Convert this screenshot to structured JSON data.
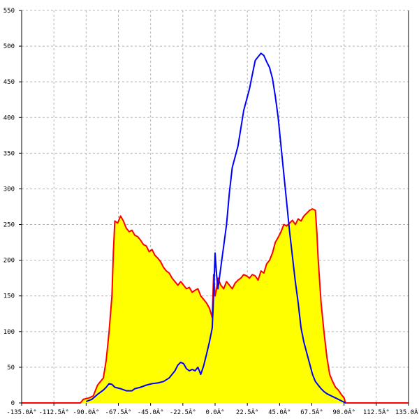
{
  "chart_data": {
    "type": "area",
    "title": "",
    "xlabel": "",
    "ylabel": "",
    "xlim": [
      -135,
      135
    ],
    "ylim": [
      0,
      550
    ],
    "grid": true,
    "legend": "none",
    "x_ticks": [
      -135,
      -112.5,
      -90,
      -67.5,
      -45,
      -22.5,
      0,
      22.5,
      45,
      67.5,
      90,
      112.5,
      135
    ],
    "x_tick_labels": [
      "-135.0Â°",
      "-112.5Â°",
      "-90.0Â°",
      "-67.5Â°",
      "-45.0Â°",
      "-22.5Â°",
      "0.0Â°",
      "22.5Â°",
      "45.0Â°",
      "67.5Â°",
      "90.0Â°",
      "112.5Â°",
      "135.0Â°"
    ],
    "y_ticks": [
      0,
      50,
      100,
      150,
      200,
      250,
      300,
      350,
      400,
      450,
      500,
      550
    ],
    "y_tick_labels": [
      "0",
      "50",
      "100",
      "150",
      "200",
      "250",
      "300",
      "350",
      "400",
      "450",
      "500",
      "550"
    ],
    "series": [
      {
        "color": "#ff0000",
        "fill": "#ffff00",
        "points": [
          [
            -135,
            0
          ],
          [
            -94,
            0
          ],
          [
            -92,
            5
          ],
          [
            -88,
            7
          ],
          [
            -85,
            10
          ],
          [
            -82,
            25
          ],
          [
            -80,
            30
          ],
          [
            -78,
            35
          ],
          [
            -76,
            60
          ],
          [
            -74,
            100
          ],
          [
            -72,
            150
          ],
          [
            -71,
            210
          ],
          [
            -70,
            255
          ],
          [
            -68,
            252
          ],
          [
            -66,
            262
          ],
          [
            -64,
            255
          ],
          [
            -62,
            245
          ],
          [
            -60,
            240
          ],
          [
            -58,
            242
          ],
          [
            -56,
            235
          ],
          [
            -54,
            233
          ],
          [
            -52,
            228
          ],
          [
            -50,
            222
          ],
          [
            -48,
            220
          ],
          [
            -46,
            212
          ],
          [
            -44,
            215
          ],
          [
            -42,
            207
          ],
          [
            -40,
            203
          ],
          [
            -38,
            198
          ],
          [
            -36,
            190
          ],
          [
            -34,
            185
          ],
          [
            -32,
            182
          ],
          [
            -30,
            175
          ],
          [
            -28,
            170
          ],
          [
            -26,
            165
          ],
          [
            -24,
            170
          ],
          [
            -22,
            165
          ],
          [
            -20,
            160
          ],
          [
            -18,
            162
          ],
          [
            -16,
            155
          ],
          [
            -14,
            158
          ],
          [
            -12,
            160
          ],
          [
            -10,
            150
          ],
          [
            -8,
            145
          ],
          [
            -6,
            140
          ],
          [
            -4,
            133
          ],
          [
            -2,
            120
          ],
          [
            -1,
            180
          ],
          [
            0,
            150
          ],
          [
            1,
            160
          ],
          [
            2,
            175
          ],
          [
            4,
            165
          ],
          [
            6,
            160
          ],
          [
            8,
            170
          ],
          [
            10,
            165
          ],
          [
            12,
            160
          ],
          [
            14,
            168
          ],
          [
            16,
            172
          ],
          [
            18,
            175
          ],
          [
            20,
            180
          ],
          [
            22,
            178
          ],
          [
            24,
            175
          ],
          [
            26,
            180
          ],
          [
            28,
            178
          ],
          [
            30,
            172
          ],
          [
            32,
            185
          ],
          [
            34,
            182
          ],
          [
            36,
            195
          ],
          [
            38,
            200
          ],
          [
            40,
            210
          ],
          [
            42,
            225
          ],
          [
            44,
            232
          ],
          [
            46,
            240
          ],
          [
            48,
            250
          ],
          [
            50,
            248
          ],
          [
            52,
            252
          ],
          [
            54,
            256
          ],
          [
            56,
            250
          ],
          [
            58,
            258
          ],
          [
            60,
            255
          ],
          [
            62,
            262
          ],
          [
            64,
            266
          ],
          [
            66,
            270
          ],
          [
            68,
            272
          ],
          [
            70,
            270
          ],
          [
            71,
            240
          ],
          [
            72,
            200
          ],
          [
            74,
            140
          ],
          [
            76,
            100
          ],
          [
            78,
            65
          ],
          [
            80,
            40
          ],
          [
            82,
            30
          ],
          [
            84,
            22
          ],
          [
            86,
            18
          ],
          [
            88,
            12
          ],
          [
            90,
            7
          ],
          [
            91,
            0
          ],
          [
            135,
            0
          ]
        ]
      },
      {
        "color": "#0000ff",
        "points": [
          [
            -90,
            2
          ],
          [
            -86,
            5
          ],
          [
            -82,
            12
          ],
          [
            -78,
            18
          ],
          [
            -76,
            22
          ],
          [
            -74,
            27
          ],
          [
            -72,
            26
          ],
          [
            -70,
            22
          ],
          [
            -66,
            20
          ],
          [
            -62,
            17
          ],
          [
            -58,
            17
          ],
          [
            -56,
            20
          ],
          [
            -52,
            22
          ],
          [
            -48,
            25
          ],
          [
            -44,
            27
          ],
          [
            -40,
            28
          ],
          [
            -36,
            30
          ],
          [
            -32,
            35
          ],
          [
            -30,
            40
          ],
          [
            -28,
            45
          ],
          [
            -26,
            53
          ],
          [
            -24,
            57
          ],
          [
            -22,
            55
          ],
          [
            -20,
            48
          ],
          [
            -18,
            45
          ],
          [
            -16,
            47
          ],
          [
            -14,
            45
          ],
          [
            -12,
            50
          ],
          [
            -10,
            40
          ],
          [
            -8,
            52
          ],
          [
            -6,
            68
          ],
          [
            -4,
            85
          ],
          [
            -2,
            105
          ],
          [
            -1,
            150
          ],
          [
            0,
            210
          ],
          [
            1,
            180
          ],
          [
            2,
            160
          ],
          [
            4,
            190
          ],
          [
            6,
            220
          ],
          [
            8,
            250
          ],
          [
            10,
            295
          ],
          [
            12,
            330
          ],
          [
            14,
            345
          ],
          [
            16,
            360
          ],
          [
            18,
            385
          ],
          [
            20,
            410
          ],
          [
            22,
            425
          ],
          [
            24,
            440
          ],
          [
            26,
            460
          ],
          [
            28,
            480
          ],
          [
            30,
            485
          ],
          [
            32,
            490
          ],
          [
            34,
            487
          ],
          [
            36,
            478
          ],
          [
            38,
            470
          ],
          [
            40,
            455
          ],
          [
            42,
            430
          ],
          [
            44,
            400
          ],
          [
            46,
            360
          ],
          [
            48,
            320
          ],
          [
            50,
            280
          ],
          [
            52,
            240
          ],
          [
            54,
            205
          ],
          [
            56,
            170
          ],
          [
            58,
            140
          ],
          [
            60,
            105
          ],
          [
            62,
            85
          ],
          [
            64,
            70
          ],
          [
            66,
            55
          ],
          [
            68,
            40
          ],
          [
            70,
            30
          ],
          [
            72,
            25
          ],
          [
            74,
            20
          ],
          [
            76,
            16
          ],
          [
            78,
            13
          ],
          [
            80,
            11
          ],
          [
            84,
            7
          ],
          [
            88,
            3
          ],
          [
            91,
            0
          ]
        ]
      }
    ]
  }
}
